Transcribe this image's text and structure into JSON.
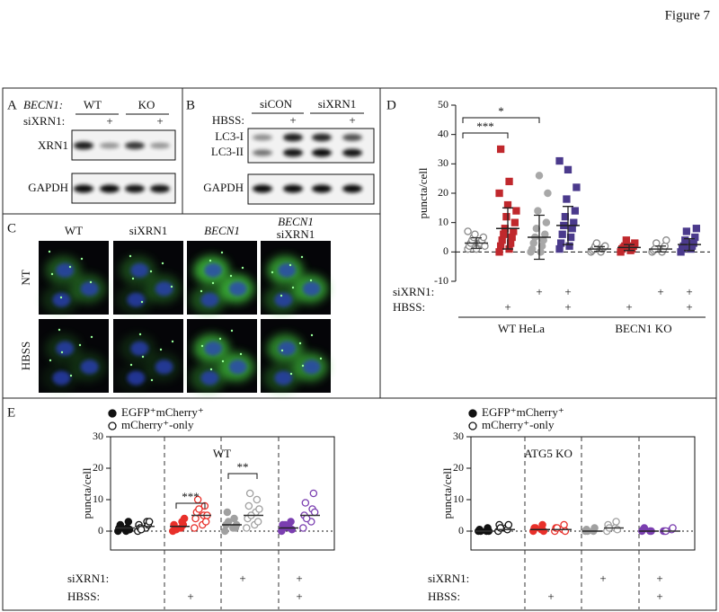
{
  "figure_label": "Figure 7",
  "panel_a": {
    "letter": "A",
    "genotype_label": "BECN1:",
    "genotypes": [
      "WT",
      "KO"
    ],
    "treatment_label": "siXRN1:",
    "treatment_marks": [
      null,
      "+",
      null,
      "+"
    ],
    "blots": [
      "XRN1",
      "GAPDH"
    ]
  },
  "panel_b": {
    "letter": "B",
    "treatments": [
      "siCON",
      "siXRN1"
    ],
    "condition_label": "HBSS:",
    "condition_marks": [
      null,
      "+",
      null,
      "+"
    ],
    "bands": [
      "LC3-I",
      "LC3-II"
    ],
    "loading": "GAPDH"
  },
  "panel_c": {
    "letter": "C",
    "columns": [
      [
        "WT"
      ],
      [
        "siXRN1"
      ],
      [
        "BECN1"
      ],
      [
        "BECN1",
        "siXRN1"
      ]
    ],
    "rows": [
      "NT",
      "HBSS"
    ]
  },
  "panel_d_letter": "D",
  "panel_e_letter": "E",
  "chart_data": [
    {
      "type": "dot",
      "y_label": "puncta/cell",
      "ylim": [
        -10,
        50
      ],
      "yticks": [
        -10,
        0,
        10,
        20,
        30,
        40,
        50
      ],
      "zero_line": true,
      "groups": [
        {
          "color": "#8a8a8a",
          "filled": false,
          "marker": "circle",
          "values": [
            1,
            2,
            2,
            3,
            3,
            3,
            4,
            4,
            5,
            5,
            6,
            2,
            1,
            7
          ],
          "mean": 3,
          "sd": 1.8
        },
        {
          "color": "#c0282d",
          "filled": true,
          "marker": "square",
          "values": [
            0,
            1,
            2,
            3,
            4,
            5,
            6,
            7,
            8,
            10,
            12,
            14,
            16,
            20,
            24,
            35
          ],
          "mean": 8,
          "sd": 7
        },
        {
          "color": "#a8a8a8",
          "filled": true,
          "marker": "circle",
          "values": [
            0,
            0,
            1,
            2,
            3,
            4,
            5,
            6,
            8,
            10,
            14,
            20,
            26
          ],
          "mean": 5,
          "sd": 7.5
        },
        {
          "color": "#4b3a8c",
          "filled": true,
          "marker": "square",
          "values": [
            1,
            2,
            3,
            5,
            6,
            8,
            9,
            10,
            12,
            14,
            18,
            22,
            28,
            31
          ],
          "mean": 9,
          "sd": 6.5
        },
        {
          "color": "#8a8a8a",
          "filled": false,
          "marker": "circle",
          "values": [
            0,
            0,
            0.5,
            1,
            1,
            1.5,
            2,
            2,
            3
          ],
          "mean": 1,
          "sd": 0.8
        },
        {
          "color": "#c0282d",
          "filled": true,
          "marker": "square",
          "values": [
            0,
            0.5,
            1,
            1,
            1.5,
            2,
            2,
            3,
            4
          ],
          "mean": 1.5,
          "sd": 1
        },
        {
          "color": "#8a8a8a",
          "filled": false,
          "marker": "circle",
          "values": [
            0,
            0,
            0.5,
            1,
            1,
            2,
            3,
            4
          ],
          "mean": 1,
          "sd": 1
        },
        {
          "color": "#4b3a8c",
          "filled": true,
          "marker": "square",
          "values": [
            0,
            1,
            1,
            2,
            2,
            3,
            4,
            5,
            7,
            8
          ],
          "mean": 2.5,
          "sd": 2
        }
      ],
      "conditions": [
        {
          "label": "siXRN1:",
          "marks": [
            null,
            null,
            "+",
            "+",
            null,
            null,
            "+",
            "+"
          ]
        },
        {
          "label": "HBSS:",
          "marks": [
            null,
            "+",
            null,
            "+",
            null,
            "+",
            null,
            "+"
          ]
        }
      ],
      "group_labels": [
        "WT HeLa",
        "BECN1 KO"
      ],
      "significance": [
        "***",
        "*"
      ]
    },
    {
      "type": "dot",
      "title": "WT",
      "y_label": "puncta/cell",
      "ylim": [
        -6,
        30
      ],
      "yticks": [
        0,
        10,
        20,
        30
      ],
      "zero_line": true,
      "frame": true,
      "legend": [
        {
          "name": "EGFP⁺mCherry⁺",
          "filled": true
        },
        {
          "name": "mCherry⁺-only",
          "filled": false
        }
      ],
      "groups": [
        {
          "color": "#111111",
          "filled": true,
          "marker": "circle",
          "values": [
            0,
            0,
            1,
            1,
            2,
            3,
            1,
            0.5
          ],
          "mean": 1
        },
        {
          "color": "#111111",
          "filled": false,
          "marker": "circle",
          "values": [
            0,
            1,
            2,
            3,
            1,
            2,
            0.5,
            3
          ],
          "mean": 1.5
        },
        {
          "color": "#e8302a",
          "filled": true,
          "marker": "circle",
          "values": [
            0,
            1,
            2,
            3,
            1,
            2,
            0.5,
            4
          ],
          "mean": 1.5
        },
        {
          "color": "#e8302a",
          "filled": false,
          "marker": "circle",
          "values": [
            1,
            2,
            4,
            5,
            6,
            8,
            10,
            3,
            7,
            5
          ],
          "mean": 5
        },
        {
          "color": "#a0a0a0",
          "filled": true,
          "marker": "circle",
          "values": [
            0,
            1,
            2,
            4,
            6,
            1,
            3,
            2
          ],
          "mean": 2
        },
        {
          "color": "#a0a0a0",
          "filled": false,
          "marker": "circle",
          "values": [
            1,
            2,
            4,
            6,
            8,
            10,
            12,
            3,
            5,
            7
          ],
          "mean": 5
        },
        {
          "color": "#7b3fb0",
          "filled": true,
          "marker": "circle",
          "values": [
            0,
            1,
            2,
            3,
            1,
            0.5,
            2
          ],
          "mean": 1
        },
        {
          "color": "#7b3fb0",
          "filled": false,
          "marker": "circle",
          "values": [
            1,
            3,
            5,
            7,
            9,
            12,
            4,
            6
          ],
          "mean": 5
        }
      ],
      "conditions": [
        {
          "label": "siXRN1:",
          "marks": [
            null,
            null,
            "+",
            "+"
          ]
        },
        {
          "label": "HBSS:",
          "marks": [
            null,
            "+",
            null,
            "+"
          ]
        }
      ],
      "significance": [
        "***",
        "**"
      ]
    },
    {
      "type": "dot",
      "title": "ATG5 KO",
      "y_label": "puncta/cell",
      "ylim": [
        -6,
        30
      ],
      "yticks": [
        0,
        10,
        20,
        30
      ],
      "zero_line": true,
      "frame": true,
      "legend": [
        {
          "name": "EGFP⁺mCherry⁺",
          "filled": true
        },
        {
          "name": "mCherry⁺-only",
          "filled": false
        }
      ],
      "groups": [
        {
          "color": "#111111",
          "filled": true,
          "marker": "circle",
          "values": [
            0,
            0,
            0.5,
            1,
            0,
            0
          ],
          "mean": 0
        },
        {
          "color": "#111111",
          "filled": false,
          "marker": "circle",
          "values": [
            0,
            1,
            2,
            0.5,
            1,
            2
          ],
          "mean": 0.5
        },
        {
          "color": "#e8302a",
          "filled": true,
          "marker": "circle",
          "values": [
            0,
            0.5,
            1,
            2,
            1,
            0
          ],
          "mean": 0.5
        },
        {
          "color": "#e8302a",
          "filled": false,
          "marker": "circle",
          "values": [
            0,
            0.5,
            1,
            2,
            1,
            0
          ],
          "mean": 0.5
        },
        {
          "color": "#a0a0a0",
          "filled": true,
          "marker": "circle",
          "values": [
            0,
            0,
            0.5,
            1,
            0
          ],
          "mean": 0
        },
        {
          "color": "#a0a0a0",
          "filled": false,
          "marker": "circle",
          "values": [
            0,
            1,
            2,
            3,
            1,
            0.5
          ],
          "mean": 1
        },
        {
          "color": "#7b3fb0",
          "filled": true,
          "marker": "circle",
          "values": [
            0,
            0,
            0.5,
            0,
            1
          ],
          "mean": 0
        },
        {
          "color": "#7b3fb0",
          "filled": false,
          "marker": "circle",
          "values": [
            0,
            0.5,
            0,
            1,
            0
          ],
          "mean": 0
        }
      ],
      "conditions": [
        {
          "label": "siXRN1:",
          "marks": [
            null,
            null,
            "+",
            "+"
          ]
        },
        {
          "label": "HBSS:",
          "marks": [
            null,
            "+",
            null,
            "+"
          ]
        }
      ]
    }
  ]
}
